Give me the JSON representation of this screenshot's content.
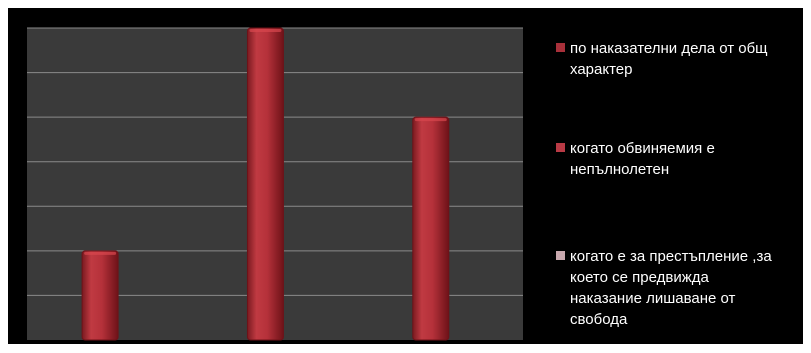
{
  "chart_data": {
    "type": "bar",
    "title": "",
    "xlabel": "",
    "ylabel": "",
    "ylim": [
      0,
      7
    ],
    "grid": true,
    "legend_position": "right",
    "categories": [
      "",
      "",
      ""
    ],
    "values": [
      2,
      7,
      5
    ],
    "colors": {
      "plot_background": "#3a3a3a",
      "background": "#000000",
      "gridline": "#8a8a8a",
      "bar": "#b5313a",
      "bar_dark": "#6e1218",
      "bar_light": "#d8474f"
    },
    "legend": [
      {
        "first_line": "по наказателни дела от общ",
        "rest": [
          "характер"
        ],
        "color": "#a8303a"
      },
      {
        "first_line": "когато обвиняемия е",
        "rest": [
          "непълнолетен"
        ],
        "color": "#b93a45"
      },
      {
        "first_line": "когато е за престъпление ,за",
        "rest": [
          "което се предвижда",
          "наказание лишаване от",
          "свобода"
        ],
        "color": "#c8a8ae"
      }
    ]
  }
}
